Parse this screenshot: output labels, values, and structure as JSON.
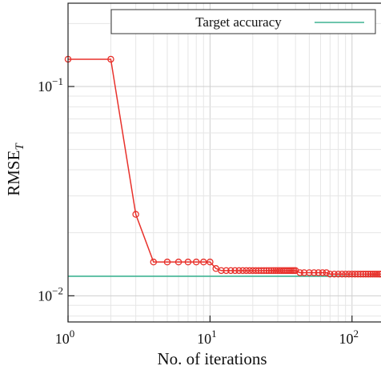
{
  "chart_data": {
    "type": "line",
    "xlabel": "No. of iterations",
    "ylabel": "RMSE",
    "ylabel_sub": "T",
    "x_scale": "log",
    "y_scale": "log",
    "xlim": [
      1,
      160
    ],
    "ylim": [
      0.0075,
      0.25
    ],
    "grid": true,
    "x_ticks": [
      {
        "value": 1,
        "base": "10",
        "exp": "0"
      },
      {
        "value": 10,
        "base": "10",
        "exp": "1"
      },
      {
        "value": 100,
        "base": "10",
        "exp": "2"
      }
    ],
    "y_ticks": [
      {
        "value": 0.1,
        "base": "10",
        "exp": "−1"
      },
      {
        "value": 0.01,
        "base": "10",
        "exp": "−2"
      }
    ],
    "legend_position": "top",
    "series": [
      {
        "color": "#e8312b",
        "marker": "circle",
        "x": [
          1,
          2,
          3,
          4,
          5,
          6,
          7,
          8,
          9,
          10,
          11,
          12,
          13,
          14,
          15,
          16,
          17,
          18,
          19,
          20,
          21,
          22,
          23,
          24,
          25,
          26,
          27,
          28,
          29,
          30,
          31,
          32,
          33,
          34,
          35,
          36,
          37,
          38,
          39,
          40,
          43,
          46,
          50,
          54,
          58,
          62,
          66,
          70,
          75,
          80,
          85,
          90,
          95,
          100,
          105,
          110,
          115,
          120,
          125,
          130,
          135,
          140,
          145,
          150,
          155,
          160
        ],
        "y": [
          0.135,
          0.135,
          0.0245,
          0.0145,
          0.0145,
          0.0145,
          0.0145,
          0.0145,
          0.0145,
          0.0145,
          0.0135,
          0.0132,
          0.0132,
          0.0132,
          0.0132,
          0.0132,
          0.0132,
          0.0132,
          0.0132,
          0.0132,
          0.0132,
          0.0132,
          0.0132,
          0.0132,
          0.0132,
          0.0132,
          0.0132,
          0.0132,
          0.0132,
          0.0132,
          0.0132,
          0.0132,
          0.0132,
          0.0132,
          0.0132,
          0.0132,
          0.0132,
          0.0132,
          0.0132,
          0.0132,
          0.0129,
          0.0129,
          0.0129,
          0.0129,
          0.0129,
          0.0129,
          0.0129,
          0.0127,
          0.0127,
          0.0127,
          0.0127,
          0.0127,
          0.0127,
          0.0127,
          0.0127,
          0.0127,
          0.0127,
          0.0127,
          0.0127,
          0.0127,
          0.0127,
          0.0127,
          0.0127,
          0.0127,
          0.0127,
          0.0127
        ]
      },
      {
        "name": "Target accuracy",
        "color": "#3fb392",
        "type": "hline",
        "y": 0.0124
      }
    ]
  }
}
